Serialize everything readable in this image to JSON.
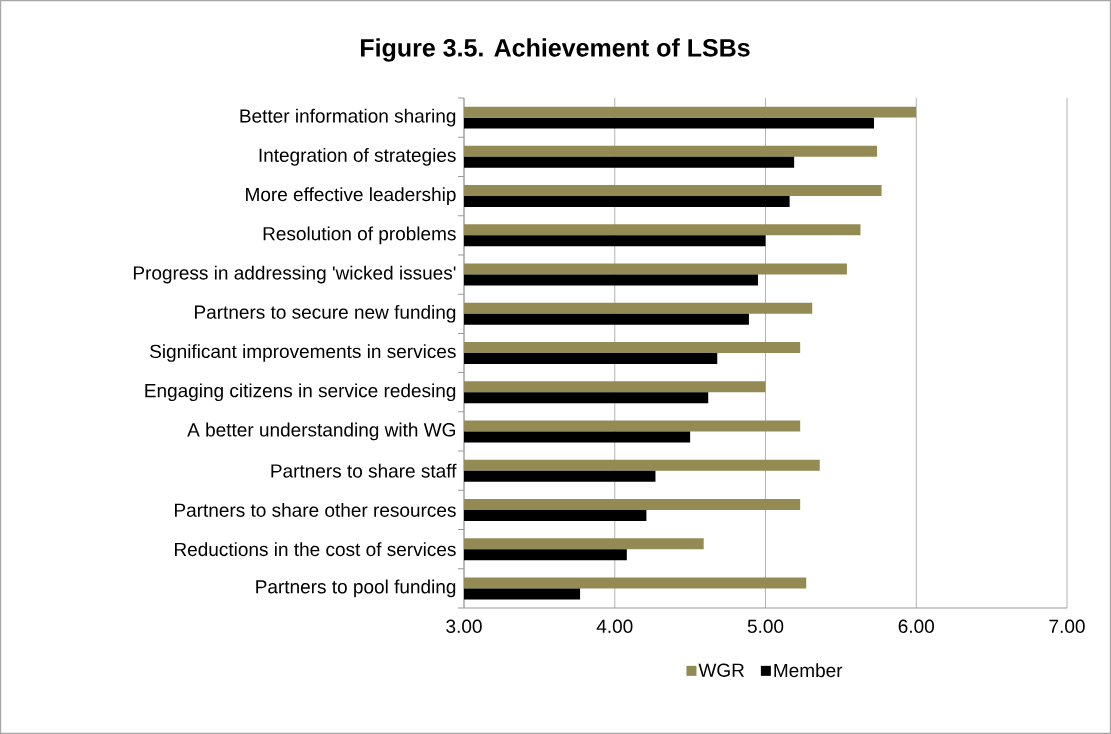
{
  "chart_data": {
    "type": "bar",
    "orientation": "horizontal",
    "title": "Figure  3.5. Achievement of LSBs",
    "categories": [
      "Better information sharing",
      "Integration of strategies",
      "More effective  leadership",
      "Resolution of problems",
      "Progress in addressing 'wicked issues'",
      "Partners to secure new funding",
      "Significant improvements in services",
      "Engaging citizens in service redesing",
      "A better understanding with WG",
      "Partners to share staff",
      "Partners to share other resources",
      "Reductions in the cost of services",
      "Partners to pool funding"
    ],
    "series": [
      {
        "name": "WGR",
        "color": "#948a54",
        "values": [
          6.0,
          5.74,
          5.77,
          5.63,
          5.54,
          5.31,
          5.23,
          5.0,
          5.23,
          5.36,
          5.23,
          4.59,
          5.27
        ]
      },
      {
        "name": "Member",
        "color": "#000000",
        "values": [
          5.72,
          5.19,
          5.16,
          5.0,
          4.95,
          4.89,
          4.68,
          4.62,
          4.5,
          4.27,
          4.21,
          4.08,
          3.77
        ]
      }
    ],
    "xlim": [
      3,
      7
    ],
    "xticks": [
      {
        "value": 3,
        "label": "3.00"
      },
      {
        "value": 4,
        "label": "4.00"
      },
      {
        "value": 5,
        "label": "5.00"
      },
      {
        "value": 6,
        "label": "6.00"
      },
      {
        "value": 7,
        "label": "7.00"
      }
    ],
    "grid": "x",
    "legend": "bottom"
  }
}
